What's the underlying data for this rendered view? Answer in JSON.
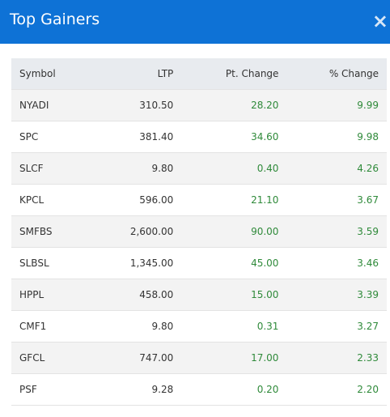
{
  "header": {
    "title": "Top Gainers",
    "close": "×"
  },
  "table": {
    "columns": [
      "Symbol",
      "LTP",
      "Pt. Change",
      "% Change"
    ],
    "rows": [
      [
        "NYADI",
        "310.50",
        "28.20",
        "9.99"
      ],
      [
        "SPC",
        "381.40",
        "34.60",
        "9.98"
      ],
      [
        "SLCF",
        "9.80",
        "0.40",
        "4.26"
      ],
      [
        "KPCL",
        "596.00",
        "21.10",
        "3.67"
      ],
      [
        "SMFBS",
        "2,600.00",
        "90.00",
        "3.59"
      ],
      [
        "SLBSL",
        "1,345.00",
        "45.00",
        "3.46"
      ],
      [
        "HPPL",
        "458.00",
        "15.00",
        "3.39"
      ],
      [
        "CMF1",
        "9.80",
        "0.31",
        "3.27"
      ],
      [
        "GFCL",
        "747.00",
        "17.00",
        "2.33"
      ],
      [
        "PSF",
        "9.28",
        "0.20",
        "2.20"
      ]
    ]
  }
}
